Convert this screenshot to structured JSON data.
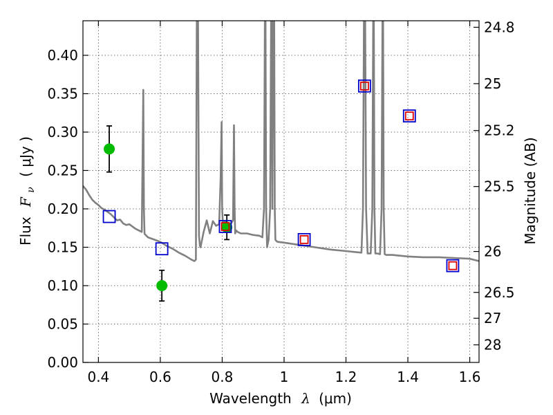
{
  "chart_data": {
    "type": "scatter",
    "title": "",
    "xlabel_text": "Wavelength",
    "xlabel_unit": "(μm)",
    "xlabel_symbol": "λ",
    "ylabel_text": "Flux",
    "ylabel_unit": "( μJy )",
    "ylabel_symbol": "F",
    "ylabel_symbol_sub": "ν",
    "y2label": "Magnitude (AB)",
    "xlim": [
      0.35,
      1.63
    ],
    "ylim": [
      0.0,
      0.445
    ],
    "grid": true,
    "x_ticks": [
      0.4,
      0.6,
      0.8,
      1.0,
      1.2,
      1.4,
      1.6
    ],
    "x_tick_labels": [
      "0.4",
      "0.6",
      "0.8",
      "1",
      "1.2",
      "1.4",
      "1.6"
    ],
    "y_ticks": [
      0.0,
      0.05,
      0.1,
      0.15,
      0.2,
      0.25,
      0.3,
      0.35,
      0.4
    ],
    "y_tick_labels": [
      "0.00",
      "0.05",
      "0.10",
      "0.15",
      "0.20",
      "0.25",
      "0.30",
      "0.35",
      "0.40"
    ],
    "mag_ticks": [
      {
        "flux": 0.4365,
        "label": "24.8"
      },
      {
        "flux": 0.3631,
        "label": "25"
      },
      {
        "flux": 0.302,
        "label": "25.2"
      },
      {
        "flux": 0.2291,
        "label": "25.5"
      },
      {
        "flux": 0.1445,
        "label": "26"
      },
      {
        "flux": 0.0912,
        "label": "26.5"
      },
      {
        "flux": 0.0575,
        "label": "27"
      },
      {
        "flux": 0.0229,
        "label": "28"
      }
    ],
    "series": [
      {
        "type": "line",
        "color": "#808080",
        "x": [
          0.35,
          0.36,
          0.37,
          0.38,
          0.39,
          0.4,
          0.41,
          0.42,
          0.43,
          0.44,
          0.45,
          0.46,
          0.47,
          0.48,
          0.49,
          0.5,
          0.52,
          0.54,
          0.545,
          0.547,
          0.549,
          0.55,
          0.56,
          0.58,
          0.6,
          0.62,
          0.64,
          0.66,
          0.68,
          0.7,
          0.71,
          0.715,
          0.718,
          0.72,
          0.722,
          0.725,
          0.728,
          0.73,
          0.74,
          0.75,
          0.76,
          0.77,
          0.78,
          0.79,
          0.795,
          0.798,
          0.8,
          0.802,
          0.805,
          0.81,
          0.82,
          0.83,
          0.835,
          0.838,
          0.84,
          0.842,
          0.845,
          0.85,
          0.86,
          0.88,
          0.9,
          0.92,
          0.93,
          0.935,
          0.938,
          0.94,
          0.942,
          0.945,
          0.95,
          0.955,
          0.958,
          0.96,
          0.962,
          0.965,
          0.968,
          0.97,
          0.972,
          0.975,
          0.98,
          1.0,
          1.05,
          1.1,
          1.15,
          1.2,
          1.25,
          1.255,
          1.258,
          1.26,
          1.262,
          1.265,
          1.27,
          1.28,
          1.285,
          1.288,
          1.29,
          1.292,
          1.295,
          1.3,
          1.31,
          1.315,
          1.318,
          1.32,
          1.322,
          1.325,
          1.33,
          1.35,
          1.4,
          1.45,
          1.5,
          1.55,
          1.6,
          1.63
        ],
        "y": [
          0.23,
          0.225,
          0.218,
          0.212,
          0.208,
          0.205,
          0.201,
          0.199,
          0.196,
          0.193,
          0.189,
          0.185,
          0.186,
          0.181,
          0.179,
          0.18,
          0.174,
          0.17,
          0.355,
          0.2,
          0.168,
          0.167,
          0.163,
          0.16,
          0.157,
          0.152,
          0.148,
          0.143,
          0.139,
          0.134,
          0.132,
          0.134,
          0.445,
          0.445,
          0.445,
          0.165,
          0.152,
          0.15,
          0.17,
          0.185,
          0.168,
          0.184,
          0.178,
          0.18,
          0.24,
          0.313,
          0.2,
          0.183,
          0.181,
          0.184,
          0.178,
          0.182,
          0.185,
          0.309,
          0.2,
          0.168,
          0.172,
          0.17,
          0.168,
          0.168,
          0.166,
          0.165,
          0.163,
          0.2,
          0.445,
          0.445,
          0.2,
          0.15,
          0.16,
          0.2,
          0.445,
          0.445,
          0.2,
          0.445,
          0.445,
          0.2,
          0.16,
          0.158,
          0.157,
          0.156,
          0.153,
          0.15,
          0.147,
          0.145,
          0.143,
          0.2,
          0.445,
          0.445,
          0.445,
          0.2,
          0.142,
          0.142,
          0.2,
          0.445,
          0.445,
          0.2,
          0.142,
          0.142,
          0.141,
          0.2,
          0.445,
          0.445,
          0.2,
          0.141,
          0.14,
          0.14,
          0.138,
          0.137,
          0.137,
          0.136,
          0.135,
          0.132
        ]
      },
      {
        "type": "errorbar",
        "color": "#00bb00",
        "x": [
          0.435,
          0.605,
          0.815
        ],
        "y": [
          0.278,
          0.1,
          0.176
        ],
        "yerr": [
          0.03,
          0.02,
          0.016
        ]
      },
      {
        "type": "scatter",
        "marker": "square",
        "color": "#0000cc",
        "x": [
          0.435,
          0.605,
          0.81,
          1.065,
          1.26,
          1.405,
          1.545
        ],
        "y": [
          0.19,
          0.148,
          0.177,
          0.16,
          0.36,
          0.321,
          0.126
        ]
      },
      {
        "type": "scatter",
        "marker": "square",
        "color": "#dd0000",
        "x": [
          0.81,
          1.065,
          1.26,
          1.405,
          1.545
        ],
        "y": [
          0.177,
          0.16,
          0.36,
          0.321,
          0.126
        ]
      }
    ]
  }
}
